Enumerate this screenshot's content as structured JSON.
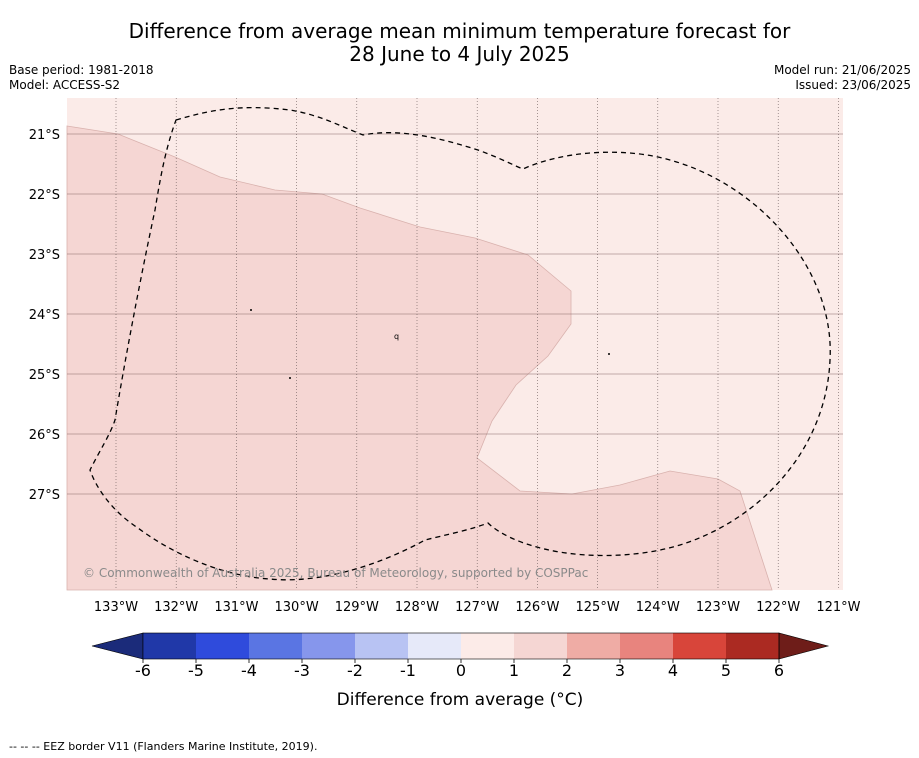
{
  "header": {
    "title_line1": "Difference from average mean minimum temperature forecast for",
    "title_line2": "28 June to 4 July 2025",
    "base_period": "Base period: 1981-2018",
    "model": "Model: ACCESS-S2",
    "model_run": "Model run: 21/06/2025",
    "issued": "Issued: 23/06/2025"
  },
  "map": {
    "copyright": "© Commonwealth of Australia 2025, Bureau of Meteorology, supported by COSPPac",
    "lat_labels": [
      "21°S",
      "22°S",
      "23°S",
      "24°S",
      "25°S",
      "26°S",
      "27°S"
    ],
    "lon_labels": [
      "133°W",
      "132°W",
      "131°W",
      "130°W",
      "129°W",
      "128°W",
      "127°W",
      "126°W",
      "125°W",
      "124°W",
      "123°W",
      "122°W",
      "121°W"
    ]
  },
  "chart_data": {
    "type": "heatmap",
    "title": "Difference from average mean minimum temperature forecast for 28 June to 4 July 2025",
    "x_axis": "longitude",
    "y_axis": "latitude",
    "xlim": [
      "133.8°W",
      "120.9°W"
    ],
    "ylim": [
      "28.6°S",
      "20.6°S"
    ],
    "regions": [
      {
        "range": "0 to 1 °C",
        "color": "#fbebe8",
        "extent": "north and east of map"
      },
      {
        "range": "1 to 2 °C",
        "color": "#f5d6d3",
        "extent": "west, south-west and south of map"
      }
    ],
    "overlay": "EEZ border (dashed)"
  },
  "colorbar": {
    "label": "Difference from average (°C)",
    "ticks": [
      "-6",
      "-5",
      "-4",
      "-3",
      "-2",
      "-1",
      "0",
      "1",
      "2",
      "3",
      "4",
      "5",
      "6"
    ],
    "colors": [
      "#2038a8",
      "#2f4bdc",
      "#5a75e3",
      "#8696ec",
      "#b8c3f3",
      "#e6e9f9",
      "#fcebe8",
      "#f5d6d3",
      "#efaca5",
      "#e8847e",
      "#d8453a",
      "#ab2a22"
    ],
    "under_color": "#1b2b7a",
    "over_color": "#6e1d19"
  },
  "footer": {
    "legend_note": "--  --  -- EEZ border V11 (Flanders Marine Institute, 2019)."
  }
}
